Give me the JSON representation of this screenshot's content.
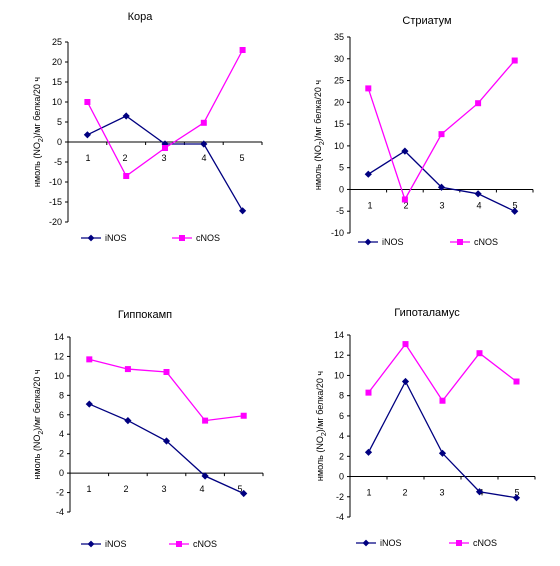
{
  "chart_data": [
    {
      "type": "line",
      "title": "Кора",
      "ylabel": "нмоль (NO2)/мг белка/20 ч",
      "ylabel_parts": [
        "нмоль (NO",
        "2",
        ")/мг белка/20 ч"
      ],
      "categories": [
        "1",
        "2",
        "3",
        "4",
        "5"
      ],
      "ylim": [
        -20,
        25
      ],
      "yticks": [
        25,
        20,
        15,
        10,
        5,
        0,
        -5,
        -10,
        -15,
        -20
      ],
      "legend_position": "bottom",
      "grid": false,
      "series": [
        {
          "name": "iNOS",
          "color": "#000080",
          "marker": "diamond",
          "values": [
            1.8,
            6.5,
            -0.5,
            -0.5,
            -17.2
          ]
        },
        {
          "name": "cNOS",
          "color": "#ff00ff",
          "marker": "square",
          "values": [
            10,
            -8.5,
            -1.5,
            4.8,
            23
          ]
        }
      ]
    },
    {
      "type": "line",
      "title": "Стриатум",
      "ylabel": "нмоль (NO2)/мг белка/20 ч",
      "ylabel_parts": [
        "нмоль (NO",
        "2",
        ")/мг белка/20 ч"
      ],
      "categories": [
        "1",
        "2",
        "3",
        "4",
        "5"
      ],
      "ylim": [
        -10,
        35
      ],
      "yticks": [
        35,
        30,
        25,
        20,
        15,
        10,
        5,
        0,
        -5,
        -10
      ],
      "legend_position": "bottom",
      "grid": false,
      "series": [
        {
          "name": "iNOS",
          "color": "#000080",
          "marker": "diamond",
          "values": [
            3.5,
            8.8,
            0.5,
            -1,
            -5
          ]
        },
        {
          "name": "cNOS",
          "color": "#ff00ff",
          "marker": "square",
          "values": [
            23.2,
            -2.3,
            12.7,
            19.8,
            29.6
          ]
        }
      ]
    },
    {
      "type": "line",
      "title": "Гиппокамп",
      "ylabel": "нмоль (NO2)/мг белка/20 ч",
      "ylabel_parts": [
        "нмоль (NO",
        "2",
        ")/мг белка/20 ч"
      ],
      "categories": [
        "1",
        "2",
        "3",
        "4",
        "5"
      ],
      "ylim": [
        -4,
        14
      ],
      "yticks": [
        14,
        12,
        10,
        8,
        6,
        4,
        2,
        0,
        -2,
        -4
      ],
      "legend_position": "bottom",
      "grid": false,
      "series": [
        {
          "name": "iNOS",
          "color": "#000080",
          "marker": "diamond",
          "values": [
            7.1,
            5.4,
            3.3,
            -0.3,
            -2.1
          ]
        },
        {
          "name": "cNOS",
          "color": "#ff00ff",
          "marker": "square",
          "values": [
            11.7,
            10.7,
            10.4,
            5.4,
            5.9
          ]
        }
      ]
    },
    {
      "type": "line",
      "title": "Гипоталамус",
      "ylabel": "нмоль (NO2)/мг белка/20 ч",
      "ylabel_parts": [
        "нмоль (NO",
        "2",
        ")/мг белка/20 ч"
      ],
      "categories": [
        "1",
        "2",
        "3",
        "4",
        "5"
      ],
      "ylim": [
        -4,
        14
      ],
      "yticks": [
        14,
        12,
        10,
        8,
        6,
        4,
        2,
        0,
        -2,
        -4
      ],
      "legend_position": "bottom",
      "grid": false,
      "series": [
        {
          "name": "iNOS",
          "color": "#000080",
          "marker": "diamond",
          "values": [
            2.4,
            9.4,
            2.3,
            -1.5,
            -2.1
          ]
        },
        {
          "name": "cNOS",
          "color": "#ff00ff",
          "marker": "square",
          "values": [
            8.3,
            13.1,
            7.5,
            12.2,
            9.4
          ]
        }
      ]
    }
  ]
}
